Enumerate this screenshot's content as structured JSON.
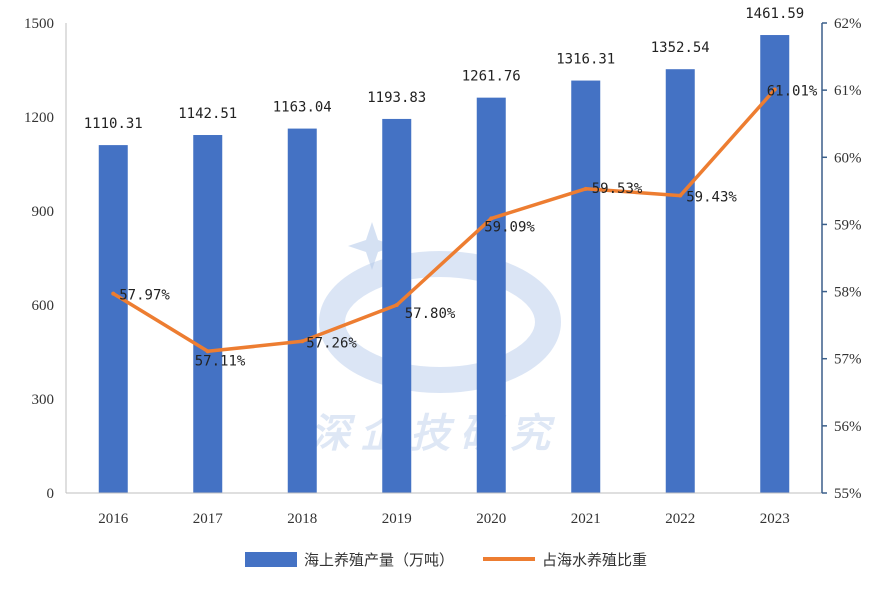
{
  "colors": {
    "bar": "#4472C4",
    "line": "#ED7D31",
    "axis": "#3b5f8a"
  },
  "watermark": {
    "text": "深企技研究"
  },
  "chart_data": {
    "type": "bar",
    "categories": [
      "2016",
      "2017",
      "2018",
      "2019",
      "2020",
      "2021",
      "2022",
      "2023"
    ],
    "series": [
      {
        "name": "海上养殖产量（万吨）",
        "type": "bar",
        "axis": "left",
        "values": [
          1110.31,
          1142.51,
          1163.04,
          1193.83,
          1261.76,
          1316.31,
          1352.54,
          1461.59
        ],
        "labels": [
          "1110.31",
          "1142.51",
          "1163.04",
          "1193.83",
          "1261.76",
          "1316.31",
          "1352.54",
          "1461.59"
        ]
      },
      {
        "name": "占海水养殖比重",
        "type": "line",
        "axis": "right",
        "values": [
          57.97,
          57.11,
          57.26,
          57.8,
          59.09,
          59.53,
          59.43,
          61.01
        ],
        "labels": [
          "57.97%",
          "57.11%",
          "57.26%",
          "57.80%",
          "59.09%",
          "59.53%",
          "59.43%",
          "61.01%"
        ]
      }
    ],
    "y_left": {
      "ylim": [
        0,
        1500
      ],
      "ticks": [
        "0",
        "300",
        "600",
        "900",
        "1200",
        "1500"
      ]
    },
    "y_right": {
      "ylim": [
        55,
        62
      ],
      "ticks": [
        "55%",
        "56%",
        "57%",
        "58%",
        "59%",
        "60%",
        "61%",
        "62%"
      ]
    },
    "legend_position": "bottom",
    "grid": false
  }
}
